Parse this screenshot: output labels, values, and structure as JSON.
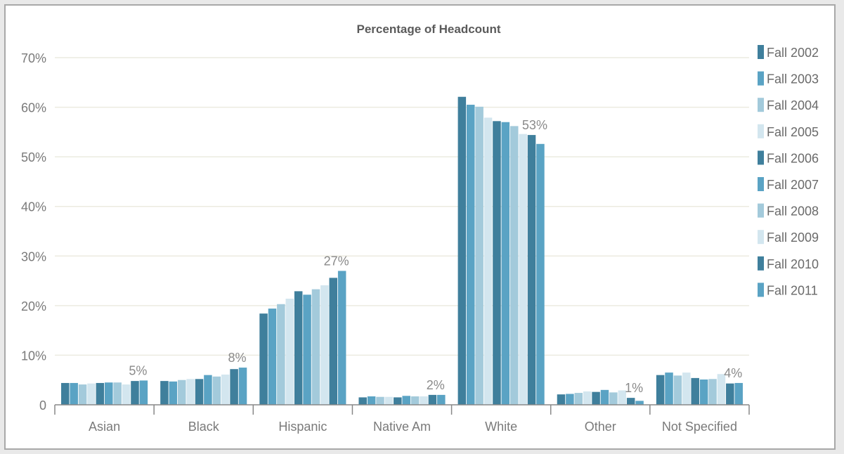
{
  "chart_data": {
    "type": "bar",
    "title": "Percentage of Headcount",
    "xlabel": "",
    "ylabel": "",
    "categories": [
      "Asian",
      "Black",
      "Hispanic",
      "Native Am",
      "White",
      "Other",
      "Not Specified"
    ],
    "ylim": [
      0,
      70
    ],
    "yticks": [
      0,
      10,
      20,
      30,
      40,
      50,
      60,
      70
    ],
    "ytick_labels": [
      "0",
      "10%",
      "20%",
      "30%",
      "40%",
      "50%",
      "60%",
      "70%"
    ],
    "grid": true,
    "legend_position": "right",
    "series": [
      {
        "name": "Fall 2002",
        "color": "#3f7f9c",
        "values": [
          4.4,
          4.8,
          18.4,
          1.5,
          62.1,
          2.1,
          6.0
        ]
      },
      {
        "name": "Fall 2003",
        "color": "#5aa3c4",
        "values": [
          4.4,
          4.7,
          19.4,
          1.7,
          60.5,
          2.2,
          6.5
        ]
      },
      {
        "name": "Fall 2004",
        "color": "#a3cadb",
        "values": [
          4.1,
          5.0,
          20.3,
          1.6,
          60.1,
          2.4,
          5.9
        ]
      },
      {
        "name": "Fall 2005",
        "color": "#d3e6ef",
        "values": [
          4.3,
          5.2,
          21.4,
          1.6,
          57.9,
          2.7,
          6.5
        ]
      },
      {
        "name": "Fall 2006",
        "color": "#3f7f9c",
        "values": [
          4.4,
          5.2,
          22.9,
          1.5,
          57.2,
          2.6,
          5.4
        ]
      },
      {
        "name": "Fall 2007",
        "color": "#5aa3c4",
        "values": [
          4.5,
          6.0,
          22.2,
          1.8,
          57.0,
          3.0,
          5.1
        ]
      },
      {
        "name": "Fall 2008",
        "color": "#a3cadb",
        "values": [
          4.5,
          5.7,
          23.3,
          1.7,
          56.2,
          2.5,
          5.2
        ]
      },
      {
        "name": "Fall 2009",
        "color": "#d3e6ef",
        "values": [
          4.1,
          6.1,
          24.1,
          1.7,
          54.6,
          2.9,
          6.2
        ]
      },
      {
        "name": "Fall 2010",
        "color": "#3f7f9c",
        "values": [
          4.8,
          7.2,
          25.6,
          2.0,
          54.4,
          1.4,
          4.3
        ]
      },
      {
        "name": "Fall 2011",
        "color": "#5aa3c4",
        "values": [
          4.9,
          7.5,
          27.0,
          2.0,
          52.6,
          0.8,
          4.4
        ]
      }
    ],
    "data_labels": [
      "5%",
      "8%",
      "27%",
      "2%",
      "53%",
      "1%",
      "4%"
    ]
  }
}
